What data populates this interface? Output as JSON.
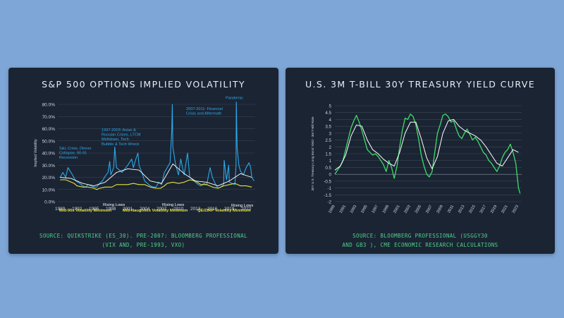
{
  "chart_data": [
    {
      "type": "line",
      "title": "S&P 500 OPTIONS IMPLIED VOLATILITY",
      "ylabel": "Implied Volatility",
      "xlabel": "",
      "ylim": [
        0,
        80
      ],
      "yticks": [
        "0.0%",
        "10.0%",
        "20.0%",
        "30.0%",
        "40.0%",
        "50.0%",
        "60.0%",
        "70.0%",
        "80.0%"
      ],
      "xticks": [
        "1989",
        "1992",
        "1995",
        "1998",
        "2001",
        "2004",
        "2007",
        "2010",
        "2013",
        "2016",
        "2019",
        "2022"
      ],
      "grid": true,
      "series": [
        {
          "color": "#2ea8e6",
          "x": [
            1989,
            1989.5,
            1990,
            1990.4,
            1990.8,
            1991.2,
            1991.8,
            1992.5,
            1993,
            1993.5,
            1994,
            1994.5,
            1995,
            1995.5,
            1996,
            1996.5,
            1997,
            1997.5,
            1997.8,
            1998,
            1998.5,
            1998.7,
            1999,
            1999.5,
            2000,
            2000.5,
            2001,
            2001.7,
            2002,
            2002.5,
            2002.8,
            2003,
            2003.5,
            2004,
            2004.5,
            2005,
            2005.5,
            2006,
            2006.5,
            2007,
            2007.5,
            2008,
            2008.5,
            2008.8,
            2008.9,
            2009,
            2009.5,
            2010,
            2010.4,
            2010.8,
            2011,
            2011.6,
            2012,
            2012.5,
            2013,
            2013.5,
            2014,
            2014.5,
            2015,
            2015.6,
            2016,
            2016.5,
            2017,
            2017.5,
            2018,
            2018.1,
            2018.5,
            2018.9,
            2019,
            2019.5,
            2020,
            2020.2,
            2020.25,
            2020.4,
            2020.7,
            2021,
            2021.5,
            2022,
            2022.5,
            2022.8,
            2023,
            2023.4
          ],
          "values": [
            20,
            24,
            20,
            28,
            25,
            22,
            17,
            15,
            13,
            12,
            14,
            13,
            12,
            12,
            15,
            17,
            21,
            24,
            33,
            22,
            28,
            45,
            28,
            26,
            24,
            27,
            30,
            35,
            28,
            36,
            40,
            30,
            24,
            17,
            15,
            13,
            12,
            12,
            16,
            14,
            24,
            28,
            32,
            58,
            80,
            45,
            30,
            22,
            35,
            26,
            22,
            40,
            20,
            18,
            16,
            14,
            13,
            15,
            14,
            28,
            20,
            15,
            11,
            12,
            14,
            34,
            18,
            30,
            16,
            15,
            14,
            30,
            82,
            44,
            30,
            25,
            22,
            28,
            32,
            28,
            20,
            17
          ]
        },
        {
          "color": "#e8e23a",
          "x": [
            1989,
            1990,
            1991,
            1991.5,
            1992,
            1993,
            1994,
            1995,
            1995.5,
            1996,
            1997,
            1998.2,
            1999,
            2000,
            2001,
            2002,
            2003,
            2004,
            2005,
            2006,
            2006.8,
            2007.5,
            2008,
            2009,
            2010,
            2011,
            2012,
            2013,
            2014,
            2015,
            2016,
            2017,
            2018,
            2019,
            2020,
            2021,
            2022,
            2023
          ],
          "values": [
            18,
            18,
            16,
            15,
            13,
            12,
            12,
            11,
            10,
            11,
            12,
            12,
            14,
            14,
            14,
            15,
            14,
            14,
            12,
            11,
            11,
            13,
            15,
            16,
            15,
            16,
            18,
            17,
            14,
            14,
            12,
            11,
            13,
            14,
            15,
            13,
            13,
            12
          ]
        },
        {
          "color": "#ffffff",
          "x": [
            1989,
            1991,
            1993,
            1995,
            1997,
            1999,
            2001,
            2003,
            2005,
            2007,
            2009,
            2011,
            2013,
            2015,
            2017,
            2019,
            2021,
            2023
          ],
          "values": [
            20,
            19,
            15,
            13,
            16,
            24,
            27,
            26,
            17,
            15,
            31,
            23,
            17,
            16,
            13,
            17,
            23,
            20
          ]
        }
      ],
      "annotations": [
        "S&L Crisis, Dinner Collapse, 90-91 Recession",
        "1997-2003: Asian & Russian Crises, LTCM Meltdown, Tech Bubble & Tech Wreck",
        "2007-2011: Financial Crisis and Aftermath",
        "Covid-19 Pandemic",
        "Mid-90s Volatility Minimum",
        "Mid-Naughties Volatility Minimum",
        "QE/ZIRP Volatility Minimum",
        "Rising Lows",
        "Rising Lows",
        "Rising Lows"
      ],
      "source": [
        "SOURCE: QUIKSTRIKE (ES_30). PRE-2007: BLOOMBERG PROFESSIONAL",
        "(VIX AND, PRE-1993, VXO)"
      ]
    },
    {
      "type": "line",
      "title": "U.S. 3M T-BILL 30Y TREASURY YIELD CURVE",
      "ylabel": "30Y U.S. Treasury Long Bond Yield - 3M T-Bill Rate",
      "xlabel": "",
      "ylim": [
        -2,
        5
      ],
      "yticks": [
        "-2",
        "-1.5",
        "-1",
        "-0.5",
        "0",
        "0.5",
        "1",
        "1.5",
        "2",
        "2.5",
        "3",
        "3.5",
        "4",
        "4.5",
        "5"
      ],
      "xticks": [
        "1989",
        "1991",
        "1993",
        "1995",
        "1997",
        "1999",
        "2001",
        "2003",
        "2005",
        "2007",
        "2009",
        "2011",
        "2013",
        "2015",
        "2017",
        "2019",
        "2021",
        "2023"
      ],
      "grid": true,
      "series": [
        {
          "color": "#3ddc6a",
          "x": [
            1989,
            1989.5,
            1990,
            1990.5,
            1991,
            1991.5,
            1992,
            1992.5,
            1993,
            1993.5,
            1994,
            1994.5,
            1995,
            1995.5,
            1996,
            1996.5,
            1997,
            1997.5,
            1998,
            1998.5,
            1999,
            1999.5,
            2000,
            2000.5,
            2001,
            2001.5,
            2002,
            2002.5,
            2003,
            2003.5,
            2004,
            2004.5,
            2005,
            2005.5,
            2006,
            2006.5,
            2007,
            2007.5,
            2008,
            2008.5,
            2009,
            2009.5,
            2010,
            2010.5,
            2011,
            2011.5,
            2012,
            2012.5,
            2013,
            2013.5,
            2014,
            2014.5,
            2015,
            2015.5,
            2016,
            2016.5,
            2017,
            2017.5,
            2018,
            2018.5,
            2019,
            2019.5,
            2020,
            2020.5,
            2021,
            2021.5,
            2022,
            2022.5,
            2023,
            2023.3
          ],
          "values": [
            0,
            0.3,
            0.6,
            1.0,
            1.8,
            2.6,
            3.4,
            3.9,
            4.3,
            3.8,
            3.2,
            2.5,
            1.8,
            1.6,
            1.4,
            1.5,
            1.3,
            1.0,
            0.7,
            0.2,
            1.0,
            0.5,
            -0.3,
            0.6,
            2.0,
            3.2,
            4.1,
            4.0,
            4.4,
            4.2,
            3.6,
            2.6,
            1.4,
            0.6,
            0,
            -0.2,
            0.2,
            1.6,
            3.0,
            3.6,
            4.3,
            4.4,
            4.2,
            3.8,
            3.9,
            3.3,
            2.8,
            2.6,
            3.0,
            3.3,
            2.9,
            2.5,
            2.7,
            2.4,
            2.0,
            1.6,
            1.4,
            1.0,
            0.8,
            0.5,
            0.2,
            0.6,
            1.2,
            1.6,
            1.8,
            2.2,
            1.6,
            0.8,
            -1.0,
            -1.4
          ]
        },
        {
          "color": "#ffffff",
          "x": [
            1989,
            1990,
            1991,
            1992,
            1993,
            1994,
            1995,
            1996,
            1997,
            1998,
            1999,
            2000,
            2001,
            2002,
            2003,
            2004,
            2005,
            2006,
            2007,
            2008,
            2009,
            2010,
            2011,
            2012,
            2013,
            2014,
            2015,
            2016,
            2017,
            2018,
            2019,
            2020,
            2021,
            2022,
            2023
          ],
          "values": [
            0.3,
            0.6,
            1.4,
            2.8,
            3.6,
            3.5,
            2.5,
            1.8,
            1.5,
            1.1,
            0.8,
            0.6,
            1.6,
            3.0,
            3.8,
            3.8,
            2.6,
            1.2,
            0.4,
            1.3,
            3.0,
            3.9,
            4.0,
            3.5,
            3.2,
            3.0,
            2.8,
            2.5,
            2.0,
            1.4,
            0.8,
            0.6,
            1.2,
            1.8,
            1.6
          ]
        }
      ],
      "source": [
        "SOURCE: BLOOMBERG PROFESSIONAL (USGGY30",
        "AND GB3 ), CME ECONOMIC RESEARCH CALCULATIONS"
      ]
    }
  ]
}
